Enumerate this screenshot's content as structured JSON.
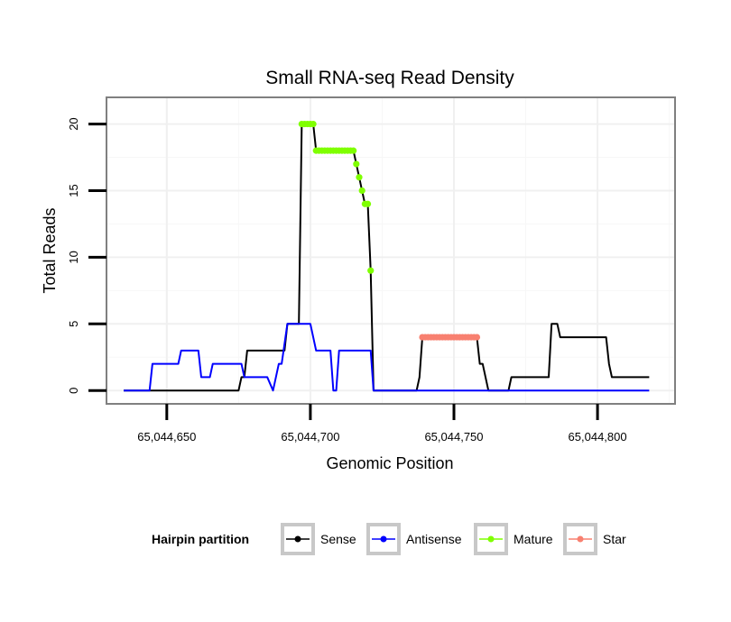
{
  "chart_data": {
    "type": "line",
    "title": "Small RNA-seq Read Density",
    "xlabel": "Genomic Position",
    "ylabel": "Total Reads",
    "xlim": [
      65044629,
      65044827
    ],
    "ylim": [
      -1,
      22
    ],
    "x_ticks": [
      65044650,
      65044700,
      65044750,
      65044800
    ],
    "x_tick_labels": [
      "65,044,650",
      "65,044,700",
      "65,044,750",
      "65,044,800"
    ],
    "y_ticks": [
      0,
      5,
      10,
      15,
      20
    ],
    "y_tick_labels": [
      "0",
      "5",
      "10",
      "15",
      "20"
    ],
    "grid": true,
    "legend": {
      "title": "Hairpin partition",
      "position": "bottom",
      "entries": [
        "Sense",
        "Antisense",
        "Mature",
        "Star"
      ]
    },
    "series": [
      {
        "name": "Sense",
        "color": "#000000",
        "marker": "none",
        "points": [
          [
            65044635,
            0
          ],
          [
            65044675,
            0
          ],
          [
            65044676,
            1
          ],
          [
            65044677,
            1
          ],
          [
            65044678,
            3
          ],
          [
            65044691,
            3
          ],
          [
            65044692,
            5
          ],
          [
            65044696,
            5
          ],
          [
            65044697,
            20
          ],
          [
            65044701,
            20
          ],
          [
            65044702,
            18
          ],
          [
            65044715,
            18
          ],
          [
            65044716,
            17
          ],
          [
            65044717,
            16
          ],
          [
            65044718,
            15
          ],
          [
            65044719,
            14
          ],
          [
            65044720,
            14
          ],
          [
            65044721,
            9
          ],
          [
            65044722,
            0
          ],
          [
            65044737,
            0
          ],
          [
            65044738,
            1
          ],
          [
            65044739,
            4
          ],
          [
            65044756,
            4
          ],
          [
            65044758,
            4
          ],
          [
            65044759,
            2
          ],
          [
            65044760,
            2
          ],
          [
            65044762,
            0
          ],
          [
            65044769,
            0
          ],
          [
            65044770,
            1
          ],
          [
            65044783,
            1
          ],
          [
            65044784,
            5
          ],
          [
            65044786,
            5
          ],
          [
            65044787,
            4
          ],
          [
            65044803,
            4
          ],
          [
            65044804,
            2
          ],
          [
            65044805,
            1
          ],
          [
            65044818,
            1
          ]
        ]
      },
      {
        "name": "Antisense",
        "color": "#0000ff",
        "marker": "none",
        "points": [
          [
            65044635,
            0
          ],
          [
            65044644,
            0
          ],
          [
            65044645,
            2
          ],
          [
            65044654,
            2
          ],
          [
            65044655,
            3
          ],
          [
            65044661,
            3
          ],
          [
            65044662,
            1
          ],
          [
            65044665,
            1
          ],
          [
            65044666,
            2
          ],
          [
            65044676,
            2
          ],
          [
            65044677,
            1
          ],
          [
            65044685,
            1
          ],
          [
            65044687,
            0
          ],
          [
            65044689,
            2
          ],
          [
            65044690,
            2
          ],
          [
            65044692,
            5
          ],
          [
            65044698,
            5
          ],
          [
            65044700,
            5
          ],
          [
            65044702,
            3
          ],
          [
            65044707,
            3
          ],
          [
            65044708,
            0
          ],
          [
            65044709,
            0
          ],
          [
            65044710,
            3
          ],
          [
            65044721,
            3
          ],
          [
            65044722,
            0
          ],
          [
            65044818,
            0
          ]
        ]
      },
      {
        "name": "Mature",
        "color": "#7fff00",
        "marker": "dot",
        "points": [
          [
            65044697,
            20
          ],
          [
            65044698,
            20
          ],
          [
            65044699,
            20
          ],
          [
            65044700,
            20
          ],
          [
            65044701,
            20
          ],
          [
            65044702,
            18
          ],
          [
            65044703,
            18
          ],
          [
            65044704,
            18
          ],
          [
            65044705,
            18
          ],
          [
            65044706,
            18
          ],
          [
            65044707,
            18
          ],
          [
            65044708,
            18
          ],
          [
            65044709,
            18
          ],
          [
            65044710,
            18
          ],
          [
            65044711,
            18
          ],
          [
            65044712,
            18
          ],
          [
            65044713,
            18
          ],
          [
            65044714,
            18
          ],
          [
            65044715,
            18
          ],
          [
            65044716,
            17
          ],
          [
            65044717,
            16
          ],
          [
            65044718,
            15
          ],
          [
            65044719,
            14
          ],
          [
            65044720,
            14
          ],
          [
            65044721,
            9
          ]
        ]
      },
      {
        "name": "Star",
        "color": "#f88070",
        "marker": "dot",
        "points": [
          [
            65044739,
            4
          ],
          [
            65044740,
            4
          ],
          [
            65044741,
            4
          ],
          [
            65044742,
            4
          ],
          [
            65044743,
            4
          ],
          [
            65044744,
            4
          ],
          [
            65044745,
            4
          ],
          [
            65044746,
            4
          ],
          [
            65044747,
            4
          ],
          [
            65044748,
            4
          ],
          [
            65044749,
            4
          ],
          [
            65044750,
            4
          ],
          [
            65044751,
            4
          ],
          [
            65044752,
            4
          ],
          [
            65044753,
            4
          ],
          [
            65044754,
            4
          ],
          [
            65044755,
            4
          ],
          [
            65044756,
            4
          ],
          [
            65044757,
            4
          ],
          [
            65044758,
            4
          ]
        ]
      }
    ]
  }
}
